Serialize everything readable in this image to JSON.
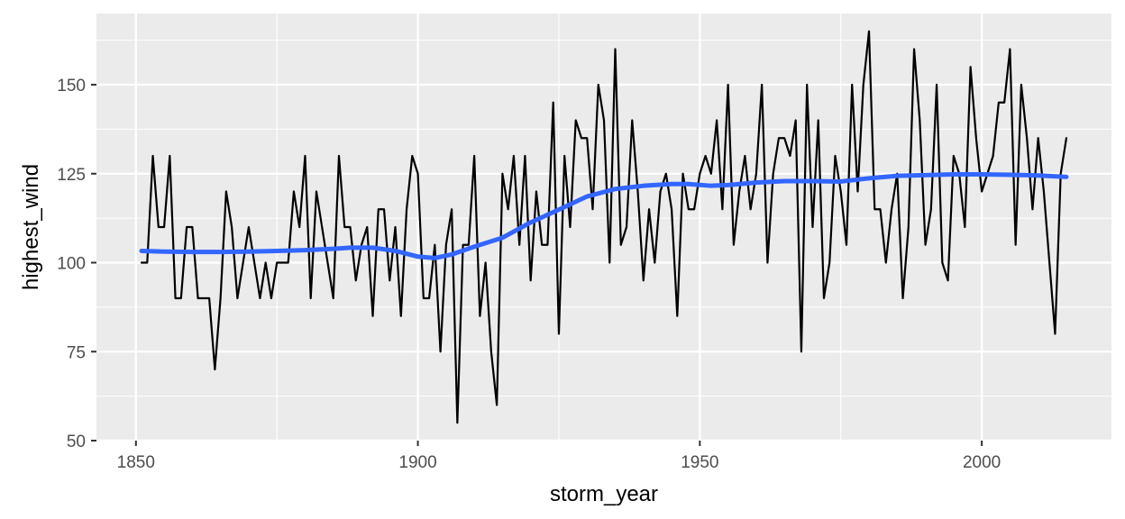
{
  "chart_data": {
    "type": "line",
    "title": "",
    "xlabel": "storm_year",
    "ylabel": "highest_wind",
    "xlim": [
      1843,
      2023
    ],
    "ylim": [
      50,
      170
    ],
    "x_ticks": [
      1850,
      1900,
      1950,
      2000
    ],
    "x_tick_labels": [
      "1850",
      "1900",
      "1950",
      "2000"
    ],
    "y_ticks": [
      50,
      75,
      100,
      125,
      150
    ],
    "y_tick_labels": [
      "50",
      "75",
      "100",
      "125",
      "150"
    ],
    "grid": true,
    "legend": "none",
    "colors": {
      "panel_background": "#ebebeb",
      "grid_major": "#ffffff",
      "series_line": "#000000",
      "smooth_line": "#3366ff",
      "tick_label": "#4d4d4d"
    },
    "series": [
      {
        "kind": "observed",
        "x": [
          1851,
          1852,
          1853,
          1854,
          1855,
          1856,
          1857,
          1858,
          1859,
          1860,
          1861,
          1862,
          1863,
          1864,
          1865,
          1866,
          1867,
          1868,
          1869,
          1870,
          1871,
          1872,
          1873,
          1874,
          1875,
          1876,
          1877,
          1878,
          1879,
          1880,
          1881,
          1882,
          1883,
          1884,
          1885,
          1886,
          1887,
          1888,
          1889,
          1890,
          1891,
          1892,
          1893,
          1894,
          1895,
          1896,
          1897,
          1898,
          1899,
          1900,
          1901,
          1902,
          1903,
          1904,
          1905,
          1906,
          1907,
          1908,
          1909,
          1910,
          1911,
          1912,
          1913,
          1914,
          1915,
          1916,
          1917,
          1918,
          1919,
          1920,
          1921,
          1922,
          1923,
          1924,
          1925,
          1926,
          1927,
          1928,
          1929,
          1930,
          1931,
          1932,
          1933,
          1934,
          1935,
          1936,
          1937,
          1938,
          1939,
          1940,
          1941,
          1942,
          1943,
          1944,
          1945,
          1946,
          1947,
          1948,
          1949,
          1950,
          1951,
          1952,
          1953,
          1954,
          1955,
          1956,
          1957,
          1958,
          1959,
          1960,
          1961,
          1962,
          1963,
          1964,
          1965,
          1966,
          1967,
          1968,
          1969,
          1970,
          1971,
          1972,
          1973,
          1974,
          1975,
          1976,
          1977,
          1978,
          1979,
          1980,
          1981,
          1982,
          1983,
          1984,
          1985,
          1986,
          1987,
          1988,
          1989,
          1990,
          1991,
          1992,
          1993,
          1994,
          1995,
          1996,
          1997,
          1998,
          1999,
          2000,
          2001,
          2002,
          2003,
          2004,
          2005,
          2006,
          2007,
          2008,
          2009,
          2010,
          2011,
          2012,
          2013,
          2014,
          2015
        ],
        "y": [
          100,
          100,
          130,
          110,
          110,
          130,
          90,
          90,
          110,
          110,
          90,
          90,
          90,
          70,
          90,
          120,
          110,
          90,
          100,
          110,
          100,
          90,
          100,
          90,
          100,
          100,
          100,
          120,
          110,
          130,
          90,
          120,
          110,
          100,
          90,
          130,
          110,
          110,
          95,
          105,
          110,
          85,
          115,
          115,
          95,
          110,
          85,
          115,
          130,
          125,
          90,
          90,
          105,
          75,
          105,
          115,
          55,
          105,
          105,
          130,
          85,
          100,
          75,
          60,
          125,
          115,
          130,
          105,
          130,
          95,
          120,
          105,
          105,
          145,
          80,
          130,
          110,
          140,
          135,
          135,
          115,
          150,
          140,
          100,
          160,
          105,
          110,
          140,
          120,
          95,
          115,
          100,
          120,
          125,
          115,
          85,
          125,
          115,
          115,
          125,
          130,
          125,
          140,
          115,
          150,
          105,
          120,
          130,
          115,
          125,
          150,
          100,
          125,
          135,
          135,
          130,
          140,
          75,
          150,
          110,
          140,
          90,
          100,
          130,
          120,
          105,
          150,
          120,
          150,
          165,
          115,
          115,
          100,
          115,
          125,
          90,
          110,
          160,
          140,
          105,
          115,
          150,
          100,
          95,
          130,
          125,
          110,
          155,
          135,
          120,
          125,
          130,
          145,
          145,
          160,
          105,
          150,
          135,
          115,
          135,
          120,
          100,
          80,
          125,
          135
        ]
      },
      {
        "kind": "smoothed",
        "x": [
          1851,
          1855,
          1860,
          1865,
          1870,
          1875,
          1880,
          1885,
          1888,
          1892,
          1896,
          1900,
          1903,
          1906,
          1910,
          1915,
          1920,
          1925,
          1930,
          1935,
          1940,
          1945,
          1948,
          1952,
          1955,
          1960,
          1965,
          1970,
          1975,
          1980,
          1985,
          1990,
          1995,
          2000,
          2005,
          2010,
          2015
        ],
        "y": [
          103.3,
          103.1,
          103,
          103,
          103.1,
          103.3,
          103.5,
          103.9,
          104.2,
          104.2,
          103.3,
          101.7,
          101.3,
          102.3,
          104.5,
          107,
          111.3,
          114.9,
          118.6,
          120.7,
          121.6,
          122.1,
          122.1,
          121.6,
          121.8,
          122.5,
          122.9,
          122.9,
          122.8,
          123.7,
          124.4,
          124.6,
          124.8,
          124.8,
          124.7,
          124.5,
          124.1
        ]
      }
    ]
  }
}
